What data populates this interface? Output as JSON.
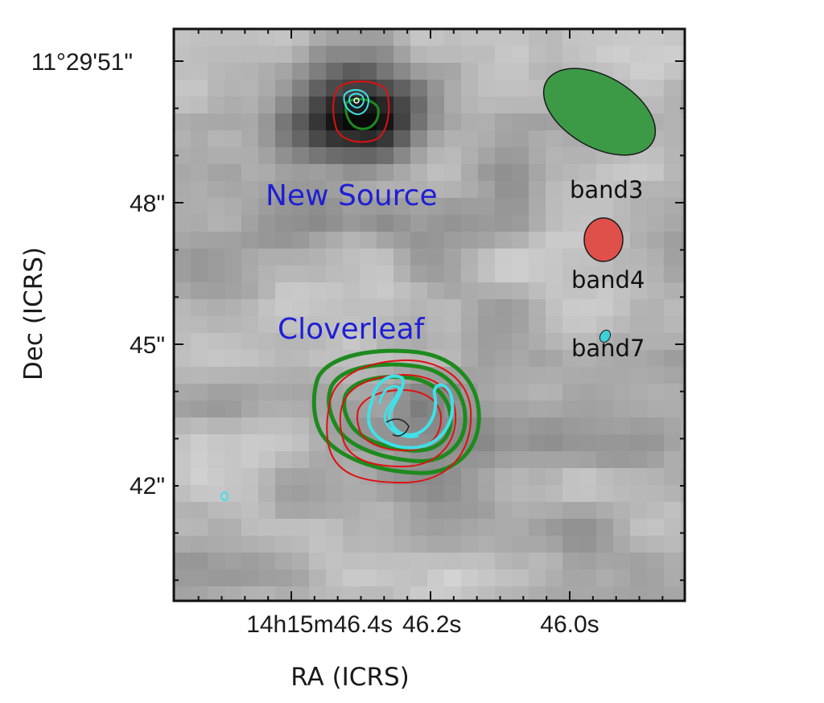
{
  "chart_data": {
    "type": "heatmap",
    "xlabel": "RA (ICRS)",
    "ylabel": "Dec (ICRS)",
    "x_ticks": [
      "14h15m46.4s",
      "46.2s",
      "46.0s"
    ],
    "y_ticks": [
      "11°29'51\"",
      "48\"",
      "45\"",
      "42\""
    ],
    "colormap": "greyscale",
    "annotations": [
      "New Source",
      "Cloverleaf"
    ],
    "beams": [
      {
        "label": "band3",
        "color": "#2e8b3a"
      },
      {
        "label": "band4",
        "color": "#e0504a"
      },
      {
        "label": "band7",
        "color": "#40d0d8"
      }
    ],
    "contour_colors": {
      "band3": "#1e8a1e",
      "band4": "#e01010",
      "band7": "#40e0e8"
    }
  }
}
